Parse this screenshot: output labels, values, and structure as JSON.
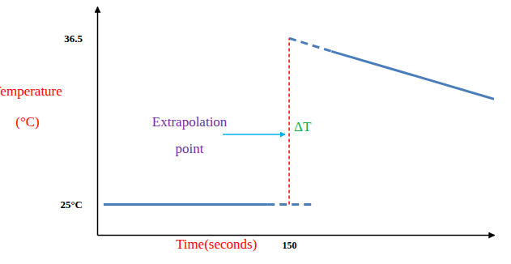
{
  "chart_data": {
    "type": "line",
    "x_label": "Time(seconds)",
    "y_label": "Temperature (°C)",
    "xlim": [
      0,
      310
    ],
    "ylim": [
      22.9,
      38.7
    ],
    "xticks": [
      150
    ],
    "yticks": [
      {
        "value": 25,
        "label": "25°C"
      },
      36.5
    ],
    "annotations": [
      "Extrapolation point",
      "ΔT"
    ],
    "series": [
      {
        "x": [
          5,
          133
        ],
        "values": [
          25,
          25
        ],
        "color": "#4a7ebb",
        "line_style": "solid"
      },
      {
        "x": [
          133,
          168
        ],
        "values": [
          25,
          25
        ],
        "color": "#4a7ebb",
        "line_style": "dashed"
      },
      {
        "x": [
          150,
          183
        ],
        "values": [
          36.5,
          35.6
        ],
        "color": "#4a7ebb",
        "line_style": "dashed"
      },
      {
        "x": [
          183,
          310
        ],
        "values": [
          35.6,
          32.3
        ],
        "color": "#4a7ebb",
        "line_style": "solid"
      },
      {
        "x": [
          150,
          150
        ],
        "values": [
          25,
          36.5
        ],
        "color": "#ff0000",
        "line_style": "dashed"
      }
    ]
  }
}
